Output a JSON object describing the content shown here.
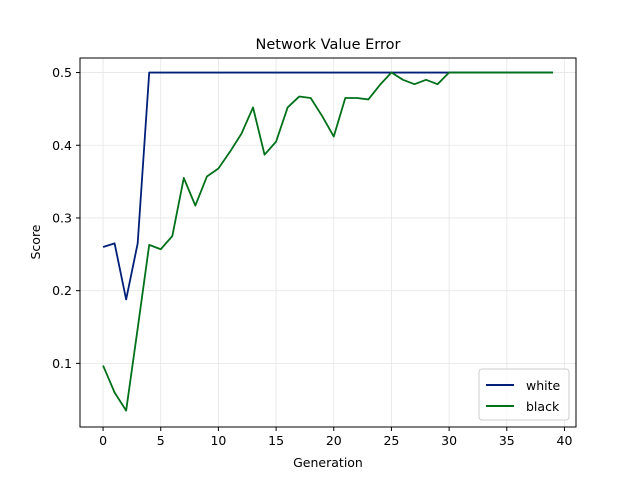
{
  "chart_data": {
    "type": "line",
    "title": "Network Value Error",
    "xlabel": "Generation",
    "ylabel": "Score",
    "xlim": [
      -2,
      41
    ],
    "ylim": [
      0.0125,
      0.52
    ],
    "xticks": [
      0,
      5,
      10,
      15,
      20,
      25,
      30,
      35,
      40
    ],
    "yticks": [
      0.1,
      0.2,
      0.3,
      0.4,
      0.5
    ],
    "xtick_labels": [
      "0",
      "5",
      "10",
      "15",
      "20",
      "25",
      "30",
      "35",
      "40"
    ],
    "ytick_labels": [
      "0.1",
      "0.2",
      "0.3",
      "0.4",
      "0.5"
    ],
    "grid": true,
    "legend_position": "lower-right",
    "series": [
      {
        "name": "white",
        "color": "#001f78",
        "x": [
          0,
          1,
          2,
          3,
          4,
          5,
          6,
          7,
          8,
          9,
          10,
          11,
          12,
          13,
          14,
          15,
          16,
          17,
          18,
          19,
          20,
          21,
          22,
          23,
          24,
          25,
          26,
          27,
          28,
          29,
          30,
          31,
          32,
          33,
          34,
          35,
          36,
          37,
          38,
          39
        ],
        "values": [
          0.26,
          0.265,
          0.188,
          0.265,
          0.5,
          0.5,
          0.5,
          0.5,
          0.5,
          0.5,
          0.5,
          0.5,
          0.5,
          0.5,
          0.5,
          0.5,
          0.5,
          0.5,
          0.5,
          0.5,
          0.5,
          0.5,
          0.5,
          0.5,
          0.5,
          0.5,
          0.5,
          0.5,
          0.5,
          0.5,
          0.5,
          0.5,
          0.5,
          0.5,
          0.5,
          0.5,
          0.5,
          0.5,
          0.5,
          0.5
        ]
      },
      {
        "name": "black",
        "color": "#00701a",
        "x": [
          0,
          1,
          2,
          3,
          4,
          5,
          6,
          7,
          8,
          9,
          10,
          11,
          12,
          13,
          14,
          15,
          16,
          17,
          18,
          19,
          20,
          21,
          22,
          23,
          24,
          25,
          26,
          27,
          28,
          29,
          30,
          31,
          32,
          33,
          34,
          35,
          36,
          37,
          38,
          39
        ],
        "values": [
          0.097,
          0.06,
          0.035,
          0.148,
          0.263,
          0.257,
          0.275,
          0.355,
          0.317,
          0.357,
          0.368,
          0.391,
          0.416,
          0.452,
          0.387,
          0.405,
          0.452,
          0.467,
          0.465,
          0.44,
          0.412,
          0.465,
          0.465,
          0.463,
          0.483,
          0.5,
          0.49,
          0.484,
          0.49,
          0.484,
          0.5,
          0.5,
          0.5,
          0.5,
          0.5,
          0.5,
          0.5,
          0.5,
          0.5,
          0.5
        ]
      }
    ]
  }
}
